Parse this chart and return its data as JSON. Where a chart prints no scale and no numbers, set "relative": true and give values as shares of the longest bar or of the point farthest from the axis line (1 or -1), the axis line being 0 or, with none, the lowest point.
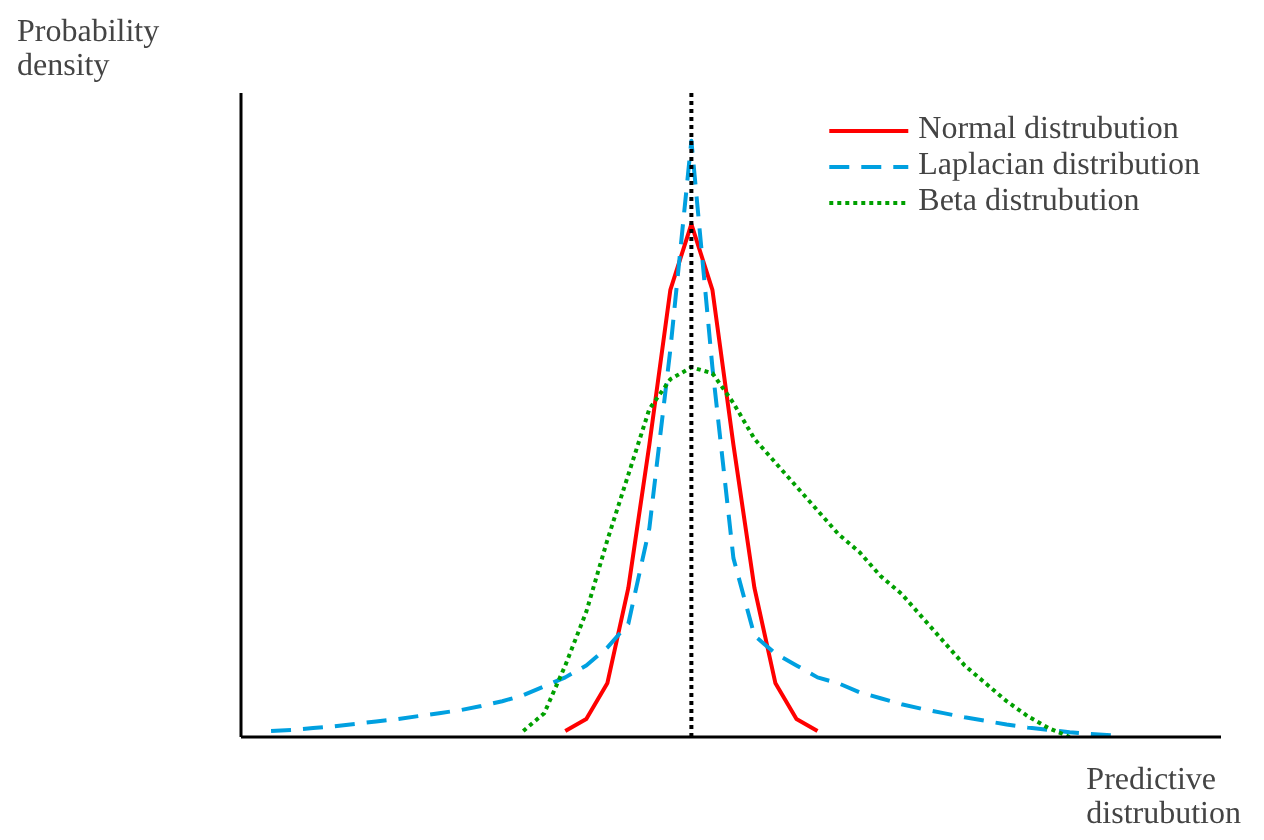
{
  "chart_data": {
    "type": "line",
    "relative": true,
    "xlabel": "Predictive distrubution",
    "ylabel": "Probability density",
    "categories": [
      null,
      null,
      null,
      null,
      null,
      null,
      null,
      null,
      null,
      null,
      null,
      null,
      null,
      null,
      null,
      null,
      null,
      null,
      null,
      null,
      null,
      null,
      null,
      null,
      null,
      null,
      null,
      null,
      null,
      null,
      null,
      null,
      null,
      null,
      null,
      null,
      null,
      null,
      null,
      null,
      null
    ],
    "series": [
      {
        "name": "Normal distrubution",
        "color": "#ff0000",
        "line_style": "solid",
        "values": [
          null,
          null,
          null,
          null,
          null,
          null,
          null,
          null,
          null,
          null,
          null,
          null,
          null,
          null,
          0.01,
          0.03,
          0.09,
          0.25,
          0.49,
          0.75,
          0.86,
          0.75,
          0.49,
          0.25,
          0.09,
          0.03,
          0.01,
          null,
          null,
          null,
          null,
          null,
          null,
          null,
          null,
          null,
          null,
          null,
          null,
          null,
          null
        ]
      },
      {
        "name": "Laplacian distribution",
        "color": "#00a0e0",
        "line_style": "dashed",
        "values": [
          0.01,
          0.012,
          0.015,
          0.018,
          0.022,
          0.026,
          0.03,
          0.035,
          0.04,
          0.045,
          0.052,
          0.06,
          0.07,
          0.085,
          0.1,
          0.12,
          0.15,
          0.19,
          0.35,
          0.65,
          1.0,
          0.62,
          0.3,
          0.17,
          0.14,
          0.12,
          0.1,
          0.09,
          0.075,
          0.065,
          0.055,
          0.047,
          0.04,
          0.033,
          0.027,
          0.021,
          0.016,
          0.012,
          0.008,
          0.005,
          0.003
        ]
      },
      {
        "name": "Beta distrubution",
        "color": "#00a000",
        "line_style": "dotted",
        "values": [
          null,
          null,
          null,
          null,
          null,
          null,
          null,
          null,
          null,
          null,
          null,
          null,
          0.01,
          0.04,
          0.12,
          0.21,
          0.33,
          0.44,
          0.55,
          0.6,
          0.62,
          0.61,
          0.56,
          0.5,
          0.46,
          0.42,
          0.38,
          0.34,
          0.31,
          0.27,
          0.24,
          0.2,
          0.16,
          0.12,
          0.09,
          0.06,
          0.035,
          0.015,
          0,
          null,
          null
        ]
      }
    ],
    "legend": "top right",
    "grid": false,
    "tick_labels": false
  }
}
